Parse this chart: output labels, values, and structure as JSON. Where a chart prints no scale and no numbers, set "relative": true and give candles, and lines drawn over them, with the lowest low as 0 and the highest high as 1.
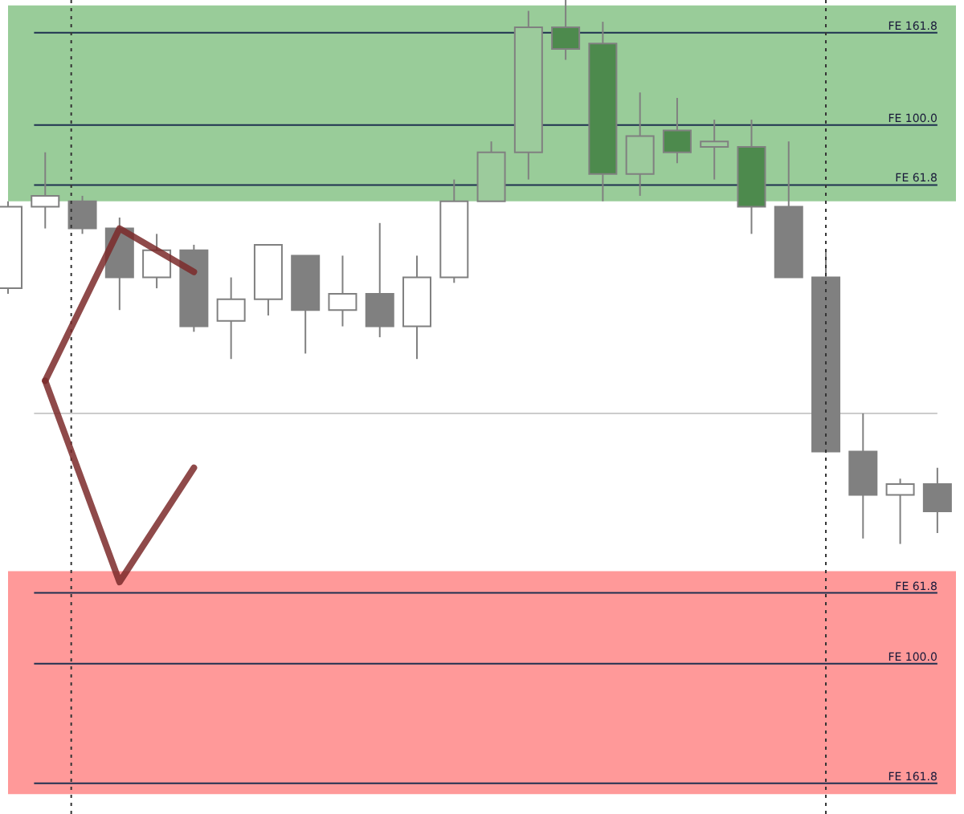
{
  "chart_data": {
    "type": "candlestick",
    "relative": true,
    "categories": [
      null,
      null,
      null,
      null,
      null,
      null,
      null,
      null,
      null,
      null,
      null,
      null,
      null,
      null,
      null,
      null,
      null,
      null,
      null,
      null,
      null,
      null,
      null,
      null,
      null,
      null
    ],
    "ohlc": [
      [
        0.47,
        0.63,
        0.46,
        0.62
      ],
      [
        0.62,
        0.72,
        0.58,
        0.64
      ],
      [
        0.63,
        0.64,
        0.57,
        0.58
      ],
      [
        0.58,
        0.6,
        0.43,
        0.49
      ],
      [
        0.49,
        0.57,
        0.47,
        0.54
      ],
      [
        0.54,
        0.55,
        0.39,
        0.4
      ],
      [
        0.41,
        0.49,
        0.34,
        0.45
      ],
      [
        0.45,
        0.55,
        0.42,
        0.55
      ],
      [
        0.53,
        0.53,
        0.35,
        0.43
      ],
      [
        0.43,
        0.53,
        0.4,
        0.46
      ],
      [
        0.46,
        0.59,
        0.38,
        0.4
      ],
      [
        0.4,
        0.53,
        0.34,
        0.49
      ],
      [
        0.49,
        0.67,
        0.48,
        0.63
      ],
      [
        0.63,
        0.74,
        0.63,
        0.72
      ],
      [
        0.72,
        0.98,
        0.67,
        0.95
      ],
      [
        0.95,
        1,
        0.89,
        0.91
      ],
      [
        0.92,
        0.96,
        0.63,
        0.68
      ],
      [
        0.68,
        0.83,
        0.64,
        0.75
      ],
      [
        0.76,
        0.82,
        0.7,
        0.72
      ],
      [
        0.73,
        0.78,
        0.67,
        0.74
      ],
      [
        0.73,
        0.78,
        0.57,
        0.62
      ],
      [
        0.62,
        0.74,
        0.49,
        0.49
      ],
      [
        0.49,
        0.54,
        0.17,
        0.17
      ],
      [
        0.17,
        0.24,
        0.01,
        0.09
      ],
      [
        0.09,
        0.12,
        0,
        0.11
      ],
      [
        0.11,
        0.14,
        0.02,
        0.06
      ]
    ],
    "colors": [
      "#ffffff",
      "#ffffff",
      "#808080",
      "#808080",
      "#ffffff",
      "#808080",
      "#ffffff",
      "#ffffff",
      "#808080",
      "#ffffff",
      "#808080",
      "#ffffff",
      "#ffffff",
      "#9ccb9c",
      "#9ccb9c",
      "#4d8a4d",
      "#4d8a4d",
      "#9ccb9c",
      "#4d8a4d",
      "#9ccb9c",
      "#4d8a4d",
      "#808080",
      "#808080",
      "#808080",
      "#ffffff",
      "#808080"
    ],
    "series": [
      {
        "type": "line",
        "color": "#7b2a2a",
        "line_style": "solid",
        "values": [
          null,
          0.3,
          0.44,
          0.58,
          0.54,
          0.5,
          null,
          null,
          null,
          null,
          null,
          null,
          null,
          null,
          null,
          null,
          null,
          null,
          null,
          null,
          null,
          null,
          null,
          null,
          null,
          null
        ]
      },
      {
        "type": "line",
        "color": "#7b2a2a",
        "line_style": "solid",
        "values": [
          null,
          0.3,
          0.115,
          -0.07,
          0.035,
          0.14,
          null,
          null,
          null,
          null,
          null,
          null,
          null,
          null,
          null,
          null,
          null,
          null,
          null,
          null,
          null,
          null,
          null,
          null,
          null,
          null
        ]
      }
    ],
    "bands": [
      {
        "axis": "y",
        "from": 0.63,
        "to": 0.99,
        "color": "#99cc99"
      },
      {
        "axis": "y",
        "from": -0.46,
        "to": -0.05,
        "color": "#ff9999"
      }
    ],
    "ref_lines": [
      {
        "axis": "y",
        "value": 0.94,
        "label": "FE 161.8",
        "color": "#1f3050",
        "line_style": "solid"
      },
      {
        "axis": "y",
        "value": 0.77,
        "label": "FE 100.0",
        "color": "#1f3050",
        "line_style": "solid"
      },
      {
        "axis": "y",
        "value": 0.66,
        "label": "FE 61.8",
        "color": "#1f3050",
        "line_style": "solid"
      },
      {
        "axis": "y",
        "value": -0.09,
        "label": "FE 61.8",
        "color": "#1f3050",
        "line_style": "solid"
      },
      {
        "axis": "y",
        "value": -0.22,
        "label": "FE 100.0",
        "color": "#1f3050",
        "line_style": "solid"
      },
      {
        "axis": "y",
        "value": -0.44,
        "label": "FE 161.8",
        "color": "#1f3050",
        "line_style": "solid"
      },
      {
        "axis": "y",
        "value": 0.24,
        "color": "#cccccc",
        "line_style": "solid"
      }
    ]
  }
}
